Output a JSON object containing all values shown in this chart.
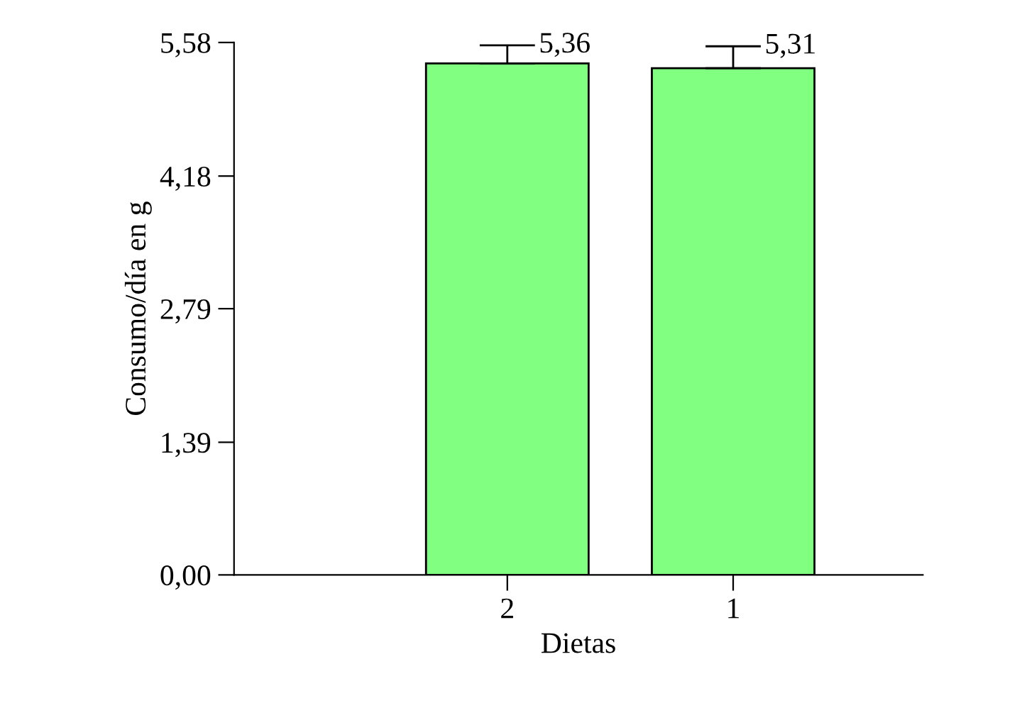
{
  "chart_data": {
    "type": "bar",
    "xlabel": "Dietas",
    "ylabel": "Consumo/día en g",
    "categories": [
      "2",
      "1"
    ],
    "values": [
      5.36,
      5.31
    ],
    "errors": [
      [
        5.36,
        5.55
      ],
      [
        5.31,
        5.54
      ]
    ],
    "value_labels": [
      "5,36",
      "5,31"
    ],
    "color": "#80ff80",
    "ylim": [
      0,
      5.58
    ],
    "yticks": [
      {
        "value": 0,
        "label": "0,00"
      },
      {
        "value": 1.39,
        "label": "1,39"
      },
      {
        "value": 2.79,
        "label": "2,79"
      },
      {
        "value": 4.18,
        "label": "4,18"
      },
      {
        "value": 5.58,
        "label": "5,58"
      }
    ],
    "grid": false,
    "legend": false
  }
}
